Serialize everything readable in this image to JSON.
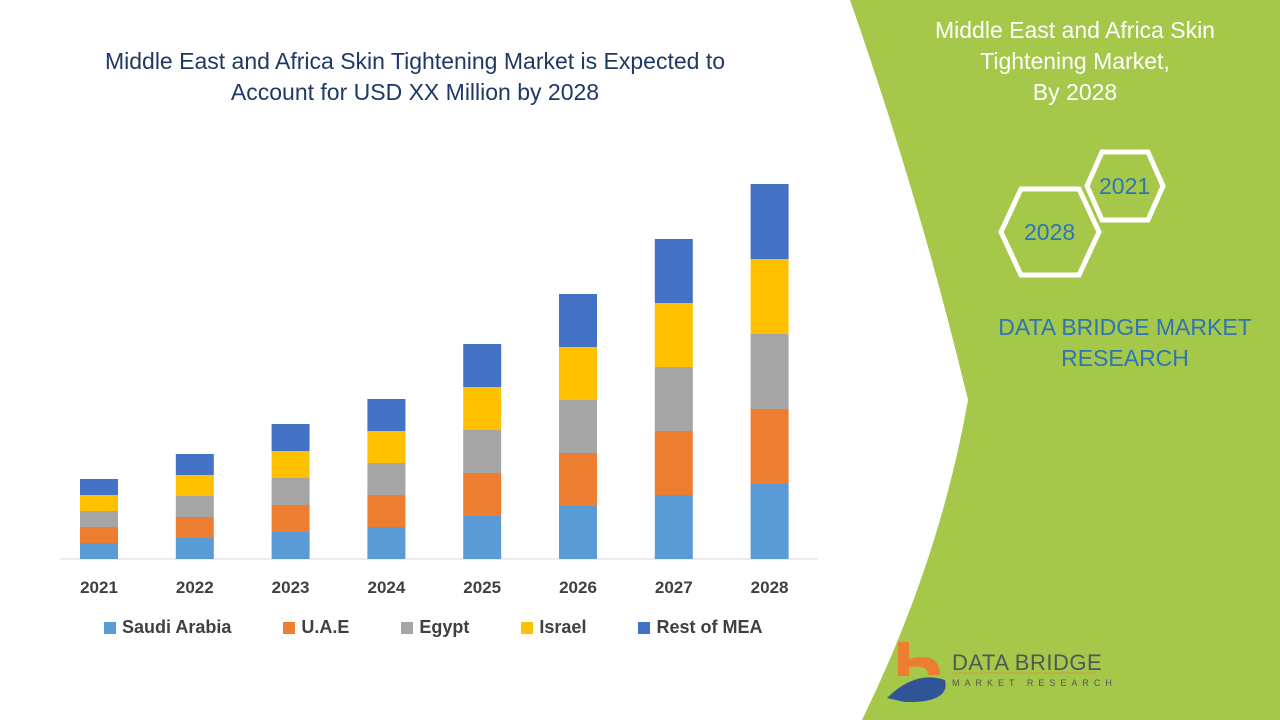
{
  "title_line1": "Middle East and Africa Skin Tightening Market is Expected to",
  "title_line2": "Account for USD XX Million by 2028",
  "panel": {
    "title_line1": "Middle East and Africa Skin",
    "title_line2": "Tightening Market,",
    "title_line3": "By 2028",
    "hex_a": "2021",
    "hex_b": "2028",
    "brand_line1": "DATA BRIDGE MARKET",
    "brand_line2": "RESEARCH",
    "logo_title": "DATA BRIDGE",
    "logo_subtitle": "MARKET RESEARCH",
    "color": "#a5c84a"
  },
  "chart_data": {
    "type": "bar",
    "stacked": true,
    "categories": [
      "2021",
      "2022",
      "2023",
      "2024",
      "2025",
      "2026",
      "2027",
      "2028"
    ],
    "series": [
      {
        "name": "Saudi Arabia",
        "color": "#5b9bd5",
        "values": [
          16,
          21,
          27,
          32,
          43,
          53,
          64,
          75
        ]
      },
      {
        "name": "U.A.E",
        "color": "#ed7d31",
        "values": [
          16,
          21,
          27,
          32,
          43,
          53,
          64,
          75
        ]
      },
      {
        "name": "Egypt",
        "color": "#a5a5a5",
        "values": [
          16,
          21,
          27,
          32,
          43,
          53,
          64,
          75
        ]
      },
      {
        "name": "Israel",
        "color": "#ffc000",
        "values": [
          16,
          21,
          27,
          32,
          43,
          53,
          64,
          75
        ]
      },
      {
        "name": "Rest of MEA",
        "color": "#4472c4",
        "values": [
          16,
          21,
          27,
          32,
          43,
          53,
          64,
          75
        ]
      }
    ],
    "y_axis_shown": false,
    "grid": false,
    "legend": "bottom"
  }
}
